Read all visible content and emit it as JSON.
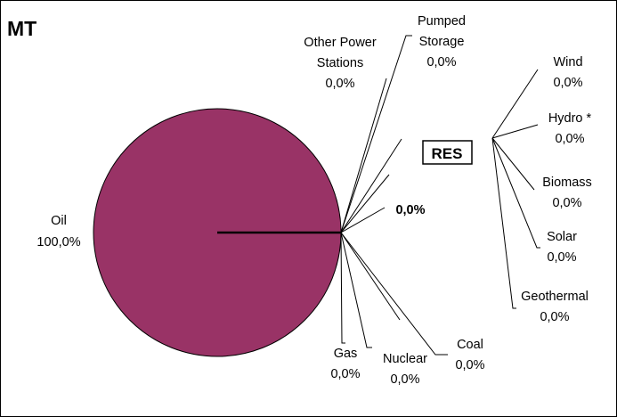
{
  "chart_data": {
    "type": "pie",
    "title": "MT",
    "slices": [
      {
        "name": "Oil",
        "value": 100.0,
        "pct": "100,0%"
      },
      {
        "name": "Other Power Stations",
        "value": 0.0,
        "pct": "0,0%"
      },
      {
        "name": "Pumped Storage",
        "value": 0.0,
        "pct": "0,0%"
      },
      {
        "name": "RES",
        "value": 0.0,
        "pct": "0,0%"
      },
      {
        "name": "Coal",
        "value": 0.0,
        "pct": "0,0%"
      },
      {
        "name": "Nuclear",
        "value": 0.0,
        "pct": "0,0%"
      },
      {
        "name": "Gas",
        "value": 0.0,
        "pct": "0,0%"
      }
    ],
    "res_breakdown": {
      "label": "RES",
      "total": "0,0%",
      "items": [
        {
          "name": "Wind",
          "value": 0.0,
          "pct": "0,0%"
        },
        {
          "name": "Hydro *",
          "value": 0.0,
          "pct": "0,0%"
        },
        {
          "name": "Biomass",
          "value": 0.0,
          "pct": "0,0%"
        },
        {
          "name": "Solar",
          "value": 0.0,
          "pct": "0,0%"
        },
        {
          "name": "Geothermal",
          "value": 0.0,
          "pct": "0,0%"
        }
      ]
    },
    "colors": {
      "oil": "#993366",
      "outline": "#000000"
    }
  }
}
